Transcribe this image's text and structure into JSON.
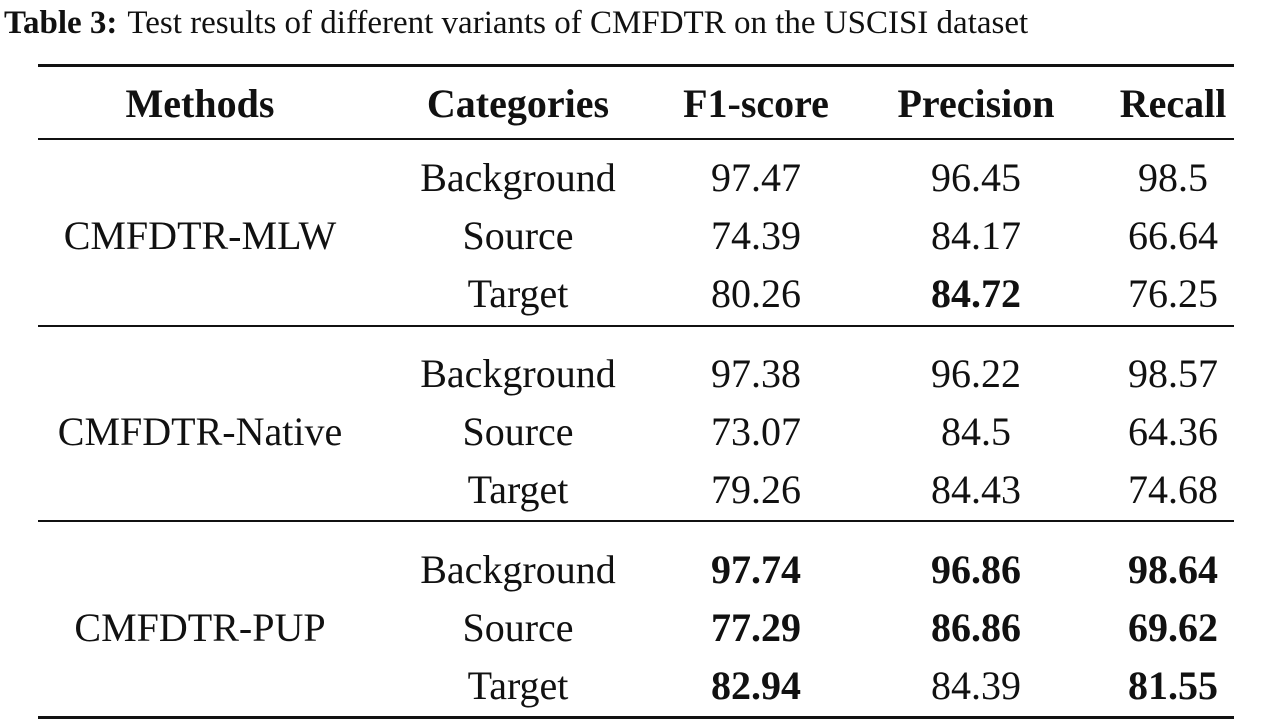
{
  "caption": {
    "label": "Table 3:",
    "text": "Test results of different variants of CMFDTR on the USCISI dataset"
  },
  "headers": {
    "methods": "Methods",
    "categories": "Categories",
    "f1": "F1-score",
    "precision": "Precision",
    "recall": "Recall"
  },
  "groups": [
    {
      "method": "CMFDTR-MLW",
      "rows": [
        {
          "category": "Background",
          "f1": "97.47",
          "precision": "96.45",
          "recall": "98.5"
        },
        {
          "category": "Source",
          "f1": "74.39",
          "precision": "84.17",
          "recall": "66.64"
        },
        {
          "category": "Target",
          "f1": "80.26",
          "precision": "84.72",
          "recall": "76.25"
        }
      ]
    },
    {
      "method": "CMFDTR-Native",
      "rows": [
        {
          "category": "Background",
          "f1": "97.38",
          "precision": "96.22",
          "recall": "98.57"
        },
        {
          "category": "Source",
          "f1": "73.07",
          "precision": "84.5",
          "recall": "64.36"
        },
        {
          "category": "Target",
          "f1": "79.26",
          "precision": "84.43",
          "recall": "74.68"
        }
      ]
    },
    {
      "method": "CMFDTR-PUP",
      "rows": [
        {
          "category": "Background",
          "f1": "97.74",
          "precision": "96.86",
          "recall": "98.64"
        },
        {
          "category": "Source",
          "f1": "77.29",
          "precision": "86.86",
          "recall": "69.62"
        },
        {
          "category": "Target",
          "f1": "82.94",
          "precision": "84.39",
          "recall": "81.55"
        }
      ]
    }
  ]
}
